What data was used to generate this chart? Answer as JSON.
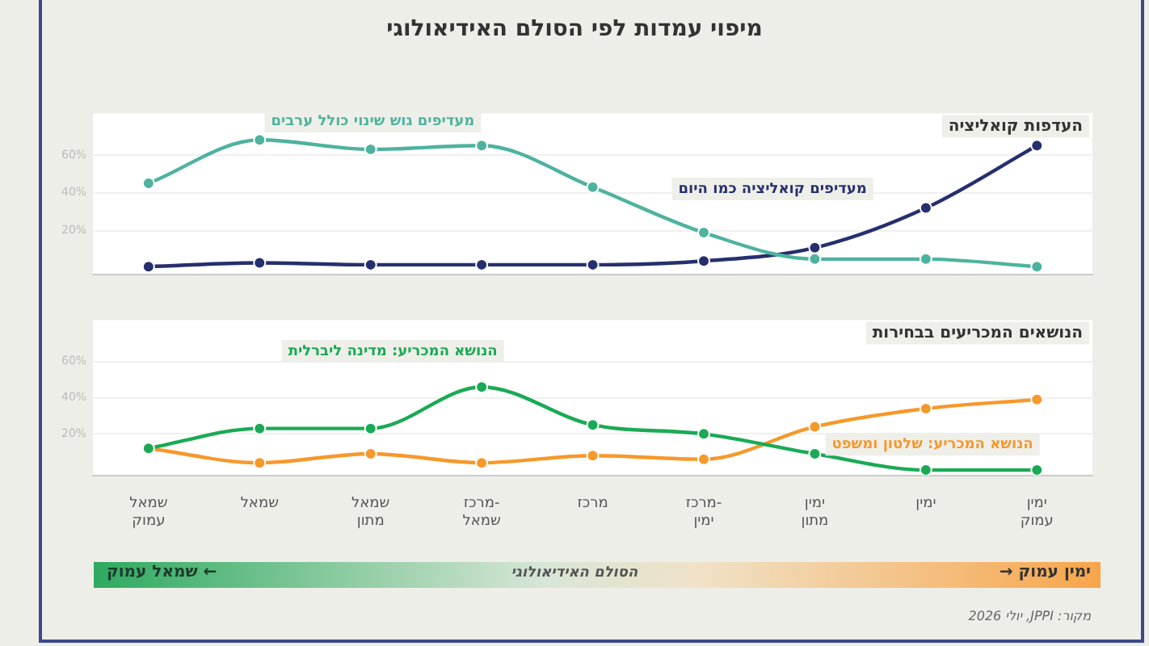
{
  "chart_data": [
    {
      "type": "line",
      "title": "מיפוי עמדות לפי הסולם האידיאולוגי",
      "subtitle": "העדפות קואליציה",
      "categories": [
        null,
        null,
        null,
        null,
        null,
        null,
        null,
        null,
        null
      ],
      "series": [
        {
          "name": "מעדיפים גוש שינוי כולל ערבים",
          "color": "#4db39e",
          "values": [
            45,
            68,
            63,
            65,
            43,
            19,
            5,
            5,
            1
          ]
        },
        {
          "name": "מעדיפים קואליציה כמו היום",
          "color": "#262f6e",
          "values": [
            1,
            3,
            2,
            2,
            2,
            4,
            11,
            32,
            65
          ]
        }
      ],
      "ylim": [
        -3,
        82
      ],
      "yticks": [
        {
          "value": 20,
          "label": "20%"
        },
        {
          "value": 40,
          "label": "40%"
        },
        {
          "value": 60,
          "label": "60%"
        }
      ],
      "grid": "y",
      "marker": "circle",
      "tick_labels": "y"
    },
    {
      "type": "line",
      "title": "הנושאים המכריעים בבחירות",
      "categories": [
        "שמאל עמוק",
        "שמאל",
        "שמאל מתון",
        "מרכז-שמאל",
        "מרכז",
        "מרכז-ימין",
        "ימין מתון",
        "ימין",
        "ימין עמוק"
      ],
      "series": [
        {
          "name": "הנושא המכריע: מדינה ליברלית",
          "color": "#1aaa55",
          "values": [
            12,
            23,
            23,
            46,
            25,
            20,
            9,
            0,
            0
          ]
        },
        {
          "name": "הנושא המכריע: שלטון ומשפט",
          "color": "#f7982a",
          "values": [
            12,
            4,
            9,
            4,
            8,
            6,
            24,
            34,
            39
          ]
        }
      ],
      "ylim": [
        -3,
        83
      ],
      "yticks": [
        {
          "value": 20,
          "label": "20%"
        },
        {
          "value": 40,
          "label": "40%"
        },
        {
          "value": 60,
          "label": "60%"
        }
      ],
      "grid": "y",
      "marker": "circle",
      "annotations": [
        "← שמאל עמוק",
        "הסולם האידיאולוגי",
        "ימין עמוק →",
        "מקור: JPPI, יולי 2026"
      ]
    }
  ]
}
